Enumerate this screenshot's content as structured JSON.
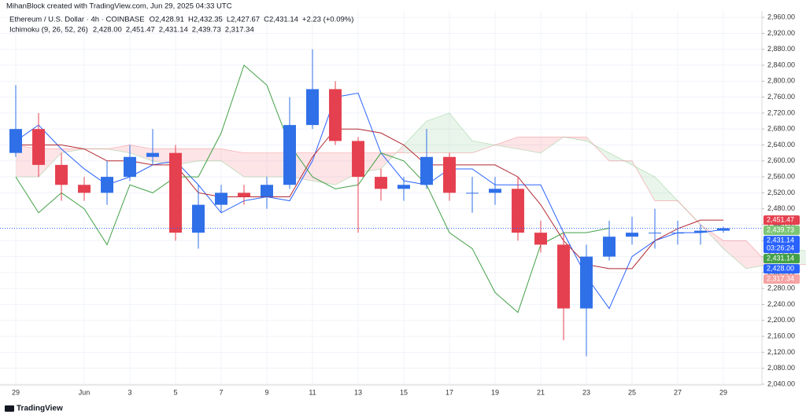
{
  "header": {
    "credit": "MihanBlock created with TradingView.com, Jun 29, 2025 04:33 UTC",
    "symbol": "Ethereum / U.S. Dollar · 4h · COINBASE",
    "ohlc": [
      "O2,428.91",
      "H2,432.35",
      "L2,427.67",
      "C2,431.14",
      "+2.23 (+0.09%)"
    ],
    "indicator": "Ichimoku (9, 26, 52, 26)",
    "indicator_values": [
      {
        "label": "2,428.00",
        "color": "#2962ff"
      },
      {
        "label": "2,451.47",
        "color": "#b22833"
      },
      {
        "label": "2,431.14",
        "color": "#43a047"
      },
      {
        "label": "2,439.73",
        "color": "#8fd08a"
      },
      {
        "label": "2,317.34",
        "color": "#f5a3a3"
      }
    ]
  },
  "footer": "TradingView",
  "chart_data": {
    "type": "candlestick",
    "x": [
      0,
      1,
      2,
      3,
      4,
      5,
      6,
      7,
      8,
      9,
      10,
      11,
      12,
      13,
      14,
      15,
      16,
      17,
      18,
      19,
      20,
      21,
      22,
      23,
      24,
      25,
      26,
      27,
      28,
      29,
      30,
      31
    ],
    "open": [
      2620,
      2680,
      2590,
      2540,
      2520,
      2560,
      2610,
      2620,
      2420,
      2490,
      2520,
      2510,
      2540,
      2690,
      2780,
      2650,
      2560,
      2530,
      2540,
      2610,
      2520,
      2520,
      2530,
      2420,
      2390,
      2230,
      2360,
      2410,
      2420,
      2420,
      2420,
      2425
    ],
    "high": [
      2790,
      2720,
      2620,
      2560,
      2600,
      2640,
      2680,
      2640,
      2540,
      2540,
      2540,
      2560,
      2760,
      2880,
      2800,
      2660,
      2580,
      2560,
      2680,
      2620,
      2560,
      2560,
      2560,
      2450,
      2420,
      2390,
      2450,
      2460,
      2480,
      2450,
      2440,
      2435
    ],
    "low": [
      2610,
      2560,
      2500,
      2500,
      2490,
      2550,
      2590,
      2400,
      2380,
      2470,
      2490,
      2480,
      2530,
      2680,
      2640,
      2420,
      2500,
      2500,
      2530,
      2500,
      2470,
      2490,
      2400,
      2370,
      2150,
      2110,
      2350,
      2390,
      2380,
      2390,
      2390,
      2420
    ],
    "close": [
      2680,
      2590,
      2540,
      2520,
      2560,
      2610,
      2620,
      2420,
      2490,
      2520,
      2510,
      2540,
      2690,
      2780,
      2650,
      2560,
      2530,
      2540,
      2610,
      2520,
      2520,
      2530,
      2420,
      2390,
      2230,
      2360,
      2410,
      2420,
      2420,
      2420,
      2425,
      2431.14
    ],
    "up_color": "#2f6fe8",
    "down_color": "#e5404f",
    "lines": [
      {
        "color": "#2962ff",
        "x": [
          0,
          1,
          2,
          3,
          4,
          5,
          6,
          7,
          8,
          9,
          10,
          11,
          12,
          13,
          14,
          15,
          16,
          17,
          18,
          19,
          20,
          21,
          22,
          23,
          24,
          25,
          26,
          27,
          28,
          29,
          30,
          31
        ],
        "values": [
          2650,
          2690,
          2630,
          2580,
          2540,
          2560,
          2590,
          2600,
          2540,
          2470,
          2500,
          2510,
          2500,
          2600,
          2760,
          2770,
          2620,
          2550,
          2540,
          2580,
          2580,
          2540,
          2540,
          2540,
          2420,
          2310,
          2230,
          2360,
          2400,
          2420,
          2420,
          2428
        ]
      },
      {
        "color": "#b22833",
        "x": [
          0,
          1,
          2,
          3,
          4,
          5,
          6,
          7,
          8,
          9,
          10,
          11,
          12,
          13,
          14,
          15,
          16,
          17,
          18,
          19,
          20,
          21,
          22,
          23,
          24,
          25,
          26,
          27,
          28,
          29,
          30,
          31
        ],
        "values": [
          2640,
          2640,
          2640,
          2630,
          2600,
          2600,
          2590,
          2590,
          2520,
          2510,
          2510,
          2510,
          2510,
          2610,
          2680,
          2680,
          2670,
          2640,
          2590,
          2590,
          2590,
          2590,
          2560,
          2490,
          2400,
          2340,
          2330,
          2330,
          2400,
          2430,
          2451.47,
          2451.47
        ]
      },
      {
        "color": "#43a047",
        "x": [
          0,
          1,
          2,
          3,
          4,
          5,
          6,
          7,
          8,
          9,
          10,
          11,
          12,
          13,
          14,
          15,
          16,
          17,
          18,
          19,
          20,
          21,
          22,
          23,
          24,
          25,
          26
        ],
        "values": [
          2560,
          2470,
          2520,
          2480,
          2390,
          2540,
          2520,
          2560,
          2560,
          2670,
          2840,
          2790,
          2640,
          2560,
          2530,
          2540,
          2620,
          2600,
          2540,
          2420,
          2380,
          2270,
          2220,
          2390,
          2420,
          2420,
          2431.14
        ]
      }
    ],
    "cloud": {
      "x": [
        0,
        1,
        2,
        3,
        4,
        5,
        6,
        7,
        8,
        9,
        10,
        11,
        12,
        13,
        14,
        15,
        16,
        17,
        18,
        19,
        20,
        21,
        22,
        23,
        24,
        25,
        26,
        27,
        28,
        29,
        30,
        31,
        32,
        33,
        34,
        35
      ],
      "span_a": [
        2560,
        2560,
        2620,
        2630,
        2630,
        2620,
        2600,
        2590,
        2600,
        2600,
        2560,
        2560,
        2560,
        2550,
        2540,
        2570,
        2580,
        2640,
        2700,
        2720,
        2650,
        2640,
        2630,
        2620,
        2660,
        2650,
        2620,
        2590,
        2560,
        2500,
        2440,
        2380,
        2330,
        2340,
        2380,
        2370
      ],
      "span_b": [
        2640,
        2630,
        2630,
        2630,
        2630,
        2640,
        2630,
        2630,
        2630,
        2630,
        2620,
        2620,
        2620,
        2620,
        2620,
        2620,
        2620,
        2620,
        2620,
        2620,
        2620,
        2640,
        2660,
        2660,
        2660,
        2660,
        2600,
        2600,
        2500,
        2500,
        2440,
        2400,
        2400,
        2340,
        2340,
        2340
      ],
      "up_color": "#4caf50",
      "down_color": "#f23645",
      "up_fill": "rgba(76,175,80,0.12)",
      "down_fill": "rgba(242,54,69,0.13)"
    },
    "xlim": [
      -0.69,
      32.69
    ],
    "ylim": [
      2038,
      2976
    ],
    "xticks": [
      {
        "value": 0,
        "label": "29"
      },
      {
        "value": 3,
        "label": "Jun"
      },
      {
        "value": 5,
        "label": "3"
      },
      {
        "value": 7,
        "label": "5"
      },
      {
        "value": 9,
        "label": "7"
      },
      {
        "value": 11,
        "label": "9"
      },
      {
        "value": 13,
        "label": "11"
      },
      {
        "value": 15,
        "label": "13"
      },
      {
        "value": 17,
        "label": "15"
      },
      {
        "value": 19,
        "label": "17"
      },
      {
        "value": 21,
        "label": "19"
      },
      {
        "value": 23,
        "label": "21"
      },
      {
        "value": 25,
        "label": "23"
      },
      {
        "value": 27,
        "label": "25"
      },
      {
        "value": 29,
        "label": "27"
      },
      {
        "value": 31,
        "label": "29"
      }
    ],
    "yticks": [
      {
        "value": 2040,
        "label": "2,040.00"
      },
      {
        "value": 2080,
        "label": "2,080.00"
      },
      {
        "value": 2120,
        "label": "2,120.00"
      },
      {
        "value": 2160,
        "label": "2,160.00"
      },
      {
        "value": 2200,
        "label": "2,200.00"
      },
      {
        "value": 2240,
        "label": "2,240.00"
      },
      {
        "value": 2280,
        "label": "2,280.00"
      },
      {
        "value": 2320,
        "label": "2,320.00"
      },
      {
        "value": 2360,
        "label": "2,360.00"
      },
      {
        "value": 2400,
        "label": "2,400.00"
      },
      {
        "value": 2440,
        "label": "2,440.00"
      },
      {
        "value": 2480,
        "label": "2,480.00"
      },
      {
        "value": 2520,
        "label": "2,520.00"
      },
      {
        "value": 2560,
        "label": "2,560.00"
      },
      {
        "value": 2600,
        "label": "2,600.00"
      },
      {
        "value": 2640,
        "label": "2,640.00"
      },
      {
        "value": 2680,
        "label": "2,680.00"
      },
      {
        "value": 2720,
        "label": "2,720.00"
      },
      {
        "value": 2760,
        "label": "2,760.00"
      },
      {
        "value": 2800,
        "label": "2,800.00"
      },
      {
        "value": 2840,
        "label": "2,840.00"
      },
      {
        "value": 2880,
        "label": "2,880.00"
      },
      {
        "value": 2920,
        "label": "2,920.00"
      },
      {
        "value": 2960,
        "label": "2,960.00"
      }
    ],
    "grid": true,
    "price_labels": [
      {
        "value": 2451.47,
        "label": "2,451.47",
        "color": "#e5404f"
      },
      {
        "value": 2439.73,
        "label": "2,439.73",
        "color": "#7cc576"
      },
      {
        "value": 2431.14,
        "label": "2,431.14",
        "countdown": "03:26:24",
        "color": "#2962ff"
      },
      {
        "value": 2431.14,
        "label": "2,431.14",
        "color": "#43a047"
      },
      {
        "value": 2428.0,
        "label": "2,428.00",
        "color": "#2962ff"
      },
      {
        "value": 2317.34,
        "label": "2,317.34",
        "color": "#f5a3a3"
      }
    ]
  }
}
